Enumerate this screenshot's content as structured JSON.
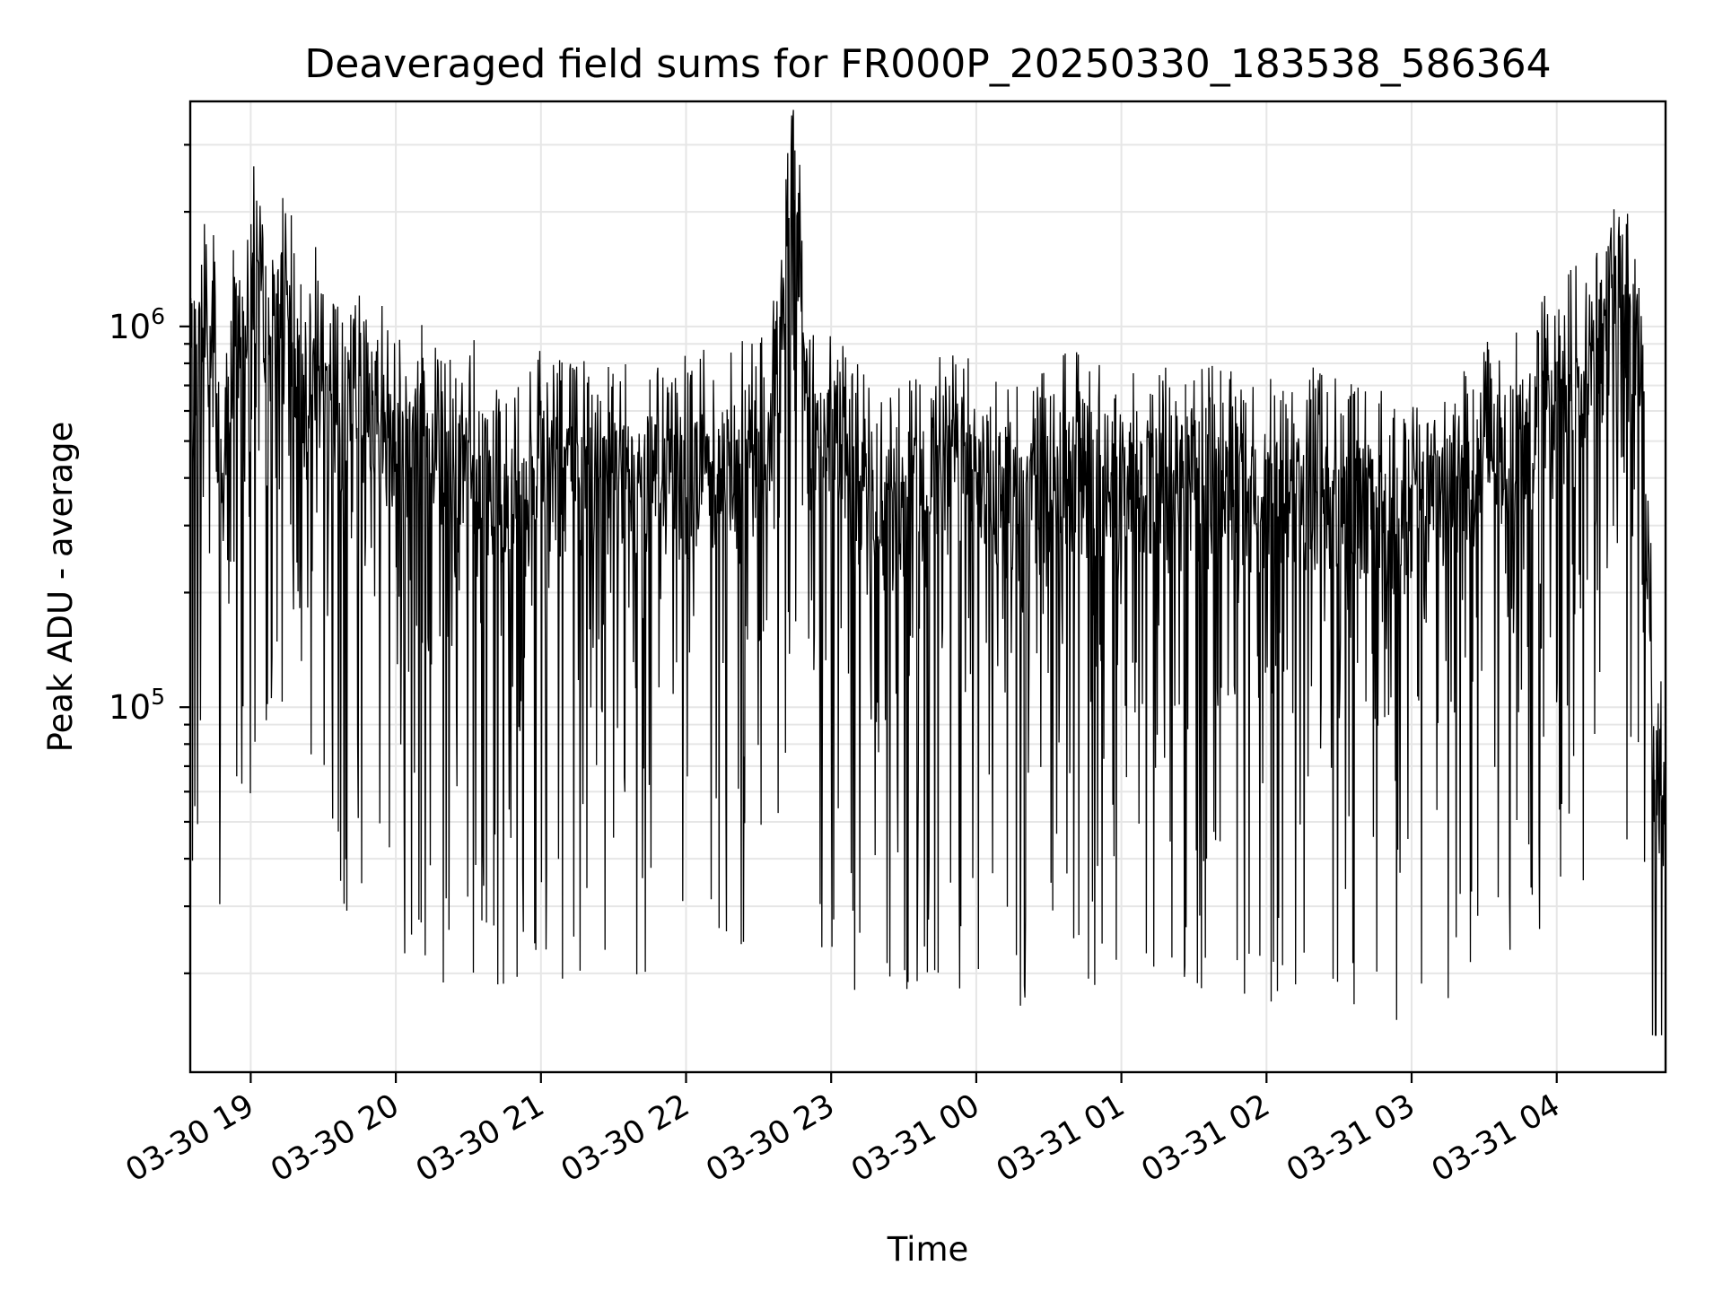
{
  "chart_data": {
    "type": "line",
    "title": "Deaveraged field sums for FR000P_20250330_183538_586364",
    "xlabel": "Time",
    "ylabel": "Peak ADU - average",
    "yscale": "log",
    "xlim": [
      "2025-03-30 18:35",
      "2025-03-31 04:45"
    ],
    "ylim": [
      11000,
      3900000
    ],
    "grid": true,
    "legend": "none",
    "x_ticks": [
      "03-30 19",
      "03-30 20",
      "03-30 21",
      "03-30 22",
      "03-30 23",
      "03-31 00",
      "03-31 01",
      "03-31 02",
      "03-31 03",
      "03-31 04"
    ],
    "y_ticks": [
      {
        "value": 100000,
        "base": "10",
        "exp": "5"
      },
      {
        "value": 1000000,
        "base": "10",
        "exp": "6"
      }
    ],
    "line_color": "#000000",
    "series": [
      {
        "x": [
          "2025-03-30 18:35",
          "2025-03-30 18:40",
          "2025-03-30 18:45",
          "2025-03-30 18:48",
          "2025-03-30 18:52",
          "2025-03-30 18:56",
          "2025-03-30 19:00",
          "2025-03-30 19:04",
          "2025-03-30 19:08",
          "2025-03-30 19:12",
          "2025-03-30 19:16",
          "2025-03-30 19:20",
          "2025-03-30 19:25",
          "2025-03-30 19:30",
          "2025-03-30 19:40",
          "2025-03-30 19:50",
          "2025-03-30 20:00",
          "2025-03-30 20:10",
          "2025-03-30 20:20",
          "2025-03-30 20:35",
          "2025-03-30 20:45",
          "2025-03-30 21:00",
          "2025-03-30 21:15",
          "2025-03-30 21:30",
          "2025-03-30 21:45",
          "2025-03-30 22:00",
          "2025-03-30 22:15",
          "2025-03-30 22:35",
          "2025-03-30 22:45",
          "2025-03-30 22:50",
          "2025-03-30 23:05",
          "2025-03-30 23:20",
          "2025-03-30 23:40",
          "2025-03-31 00:00",
          "2025-03-31 00:20",
          "2025-03-31 00:40",
          "2025-03-31 01:00",
          "2025-03-31 01:20",
          "2025-03-31 01:40",
          "2025-03-31 02:00",
          "2025-03-31 02:20",
          "2025-03-31 02:40",
          "2025-03-31 03:00",
          "2025-03-31 03:20",
          "2025-03-31 03:40",
          "2025-03-31 04:00",
          "2025-03-31 04:15",
          "2025-03-31 04:25",
          "2025-03-31 04:35",
          "2025-03-31 04:40",
          "2025-03-31 04:45"
        ],
        "y": [
          850000,
          950000,
          900000,
          250000,
          800000,
          1100000,
          1300000,
          1500000,
          900000,
          1200000,
          1000000,
          700000,
          900000,
          600000,
          500000,
          700000,
          450000,
          500000,
          400000,
          450000,
          300000,
          420000,
          400000,
          380000,
          420000,
          400000,
          450000,
          500000,
          2900000,
          500000,
          450000,
          300000,
          400000,
          400000,
          350000,
          420000,
          350000,
          400000,
          380000,
          350000,
          380000,
          350000,
          300000,
          400000,
          500000,
          600000,
          800000,
          1000000,
          900000,
          80000,
          55000
        ]
      }
    ]
  }
}
